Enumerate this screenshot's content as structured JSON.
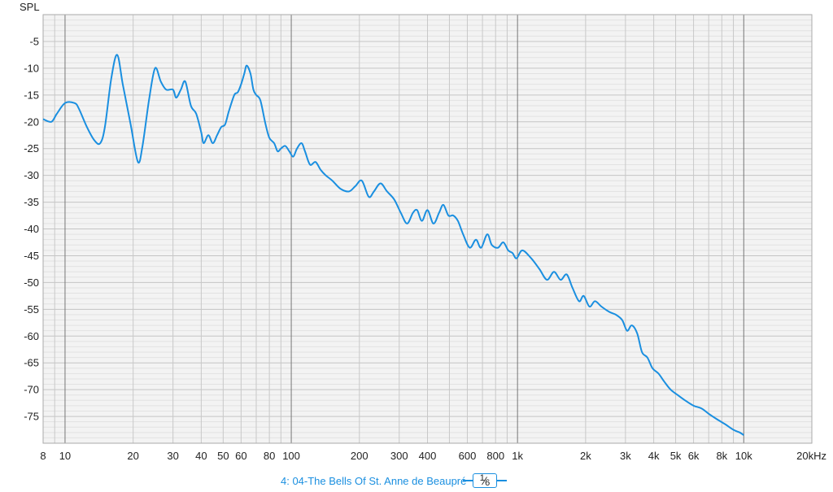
{
  "chart_data": {
    "type": "line",
    "x_scale": "log",
    "xlim": [
      8,
      20000
    ],
    "ylim": [
      -80,
      0
    ],
    "ylabel": "SPL",
    "xlabel": "",
    "grid": true,
    "y_ticks": [
      -5,
      -10,
      -15,
      -20,
      -25,
      -30,
      -35,
      -40,
      -45,
      -50,
      -55,
      -60,
      -65,
      -70,
      -75
    ],
    "x_ticks": [
      {
        "value": 8,
        "label": "8"
      },
      {
        "value": 10,
        "label": "10"
      },
      {
        "value": 20,
        "label": "20"
      },
      {
        "value": 30,
        "label": "30"
      },
      {
        "value": 40,
        "label": "40"
      },
      {
        "value": 50,
        "label": "50"
      },
      {
        "value": 60,
        "label": "60"
      },
      {
        "value": 80,
        "label": "80"
      },
      {
        "value": 100,
        "label": "100"
      },
      {
        "value": 200,
        "label": "200"
      },
      {
        "value": 300,
        "label": "300"
      },
      {
        "value": 400,
        "label": "400"
      },
      {
        "value": 600,
        "label": "600"
      },
      {
        "value": 800,
        "label": "800"
      },
      {
        "value": 1000,
        "label": "1k"
      },
      {
        "value": 2000,
        "label": "2k"
      },
      {
        "value": 3000,
        "label": "3k"
      },
      {
        "value": 4000,
        "label": "4k"
      },
      {
        "value": 5000,
        "label": "5k"
      },
      {
        "value": 6000,
        "label": "6k"
      },
      {
        "value": 8000,
        "label": "8k"
      },
      {
        "value": 10000,
        "label": "10k"
      },
      {
        "value": 20000,
        "label": "20kHz"
      }
    ],
    "series": [
      {
        "name": "4: 04-The Bells Of St. Anne de Beaupré",
        "color": "#1a8fe0",
        "points": [
          [
            8,
            -19.5
          ],
          [
            8.7,
            -20
          ],
          [
            9.2,
            -18.5
          ],
          [
            10,
            -16.5
          ],
          [
            11,
            -16.5
          ],
          [
            11.5,
            -17.5
          ],
          [
            12.5,
            -21
          ],
          [
            13.5,
            -23.5
          ],
          [
            14.3,
            -24
          ],
          [
            15,
            -21
          ],
          [
            16,
            -12
          ],
          [
            17,
            -7.5
          ],
          [
            18,
            -13
          ],
          [
            19.5,
            -20.5
          ],
          [
            21,
            -27.5
          ],
          [
            22,
            -24.5
          ],
          [
            23.5,
            -16
          ],
          [
            25,
            -10
          ],
          [
            26.5,
            -12.5
          ],
          [
            28,
            -14
          ],
          [
            30,
            -14
          ],
          [
            31,
            -15.5
          ],
          [
            32.5,
            -14
          ],
          [
            34,
            -12.5
          ],
          [
            36,
            -17
          ],
          [
            38,
            -18.5
          ],
          [
            40,
            -22
          ],
          [
            41,
            -24
          ],
          [
            43,
            -22.5
          ],
          [
            45,
            -24
          ],
          [
            47,
            -22.5
          ],
          [
            49,
            -21
          ],
          [
            51,
            -20.5
          ],
          [
            53,
            -18
          ],
          [
            56,
            -15
          ],
          [
            58,
            -14.5
          ],
          [
            60,
            -13
          ],
          [
            62,
            -11
          ],
          [
            63.5,
            -9.5
          ],
          [
            66,
            -11
          ],
          [
            68,
            -14
          ],
          [
            70,
            -15
          ],
          [
            73,
            -16
          ],
          [
            77,
            -20.5
          ],
          [
            80,
            -23
          ],
          [
            84,
            -24
          ],
          [
            87,
            -25.5
          ],
          [
            90,
            -25
          ],
          [
            94,
            -24.5
          ],
          [
            98,
            -25.5
          ],
          [
            102,
            -26.5
          ],
          [
            106,
            -25
          ],
          [
            111,
            -24
          ],
          [
            115,
            -25.5
          ],
          [
            121,
            -28
          ],
          [
            128,
            -27.5
          ],
          [
            135,
            -29
          ],
          [
            142,
            -30
          ],
          [
            152,
            -31
          ],
          [
            165,
            -32.5
          ],
          [
            180,
            -33
          ],
          [
            192,
            -32
          ],
          [
            205,
            -31
          ],
          [
            220,
            -34
          ],
          [
            232,
            -33
          ],
          [
            248,
            -31.5
          ],
          [
            265,
            -33
          ],
          [
            285,
            -34.5
          ],
          [
            305,
            -37
          ],
          [
            325,
            -39
          ],
          [
            345,
            -37
          ],
          [
            360,
            -36.5
          ],
          [
            378,
            -38.5
          ],
          [
            400,
            -36.5
          ],
          [
            425,
            -39
          ],
          [
            450,
            -37
          ],
          [
            470,
            -35.5
          ],
          [
            495,
            -37.5
          ],
          [
            520,
            -37.5
          ],
          [
            545,
            -38.5
          ],
          [
            575,
            -41
          ],
          [
            615,
            -43.5
          ],
          [
            655,
            -42
          ],
          [
            690,
            -43.5
          ],
          [
            735,
            -41
          ],
          [
            770,
            -43
          ],
          [
            820,
            -43.5
          ],
          [
            865,
            -42.5
          ],
          [
            910,
            -44
          ],
          [
            950,
            -44.5
          ],
          [
            990,
            -45.5
          ],
          [
            1050,
            -44
          ],
          [
            1150,
            -45.5
          ],
          [
            1250,
            -47.5
          ],
          [
            1350,
            -49.5
          ],
          [
            1450,
            -48
          ],
          [
            1550,
            -49.5
          ],
          [
            1650,
            -48.5
          ],
          [
            1750,
            -51
          ],
          [
            1870,
            -53.5
          ],
          [
            1960,
            -52.5
          ],
          [
            2080,
            -54.5
          ],
          [
            2200,
            -53.5
          ],
          [
            2350,
            -54.5
          ],
          [
            2550,
            -55.5
          ],
          [
            2720,
            -56
          ],
          [
            2900,
            -57
          ],
          [
            3050,
            -59
          ],
          [
            3200,
            -58
          ],
          [
            3380,
            -59.5
          ],
          [
            3550,
            -63
          ],
          [
            3750,
            -64
          ],
          [
            3950,
            -66
          ],
          [
            4200,
            -67
          ],
          [
            4450,
            -68.5
          ],
          [
            4750,
            -70
          ],
          [
            5100,
            -71
          ],
          [
            5500,
            -72
          ],
          [
            6000,
            -73
          ],
          [
            6500,
            -73.5
          ],
          [
            7000,
            -74.5
          ],
          [
            7600,
            -75.5
          ],
          [
            8300,
            -76.5
          ],
          [
            9000,
            -77.5
          ],
          [
            9600,
            -78
          ],
          [
            10000,
            -78.5
          ]
        ]
      }
    ]
  },
  "legend": {
    "series_label": "4: 04-The Bells Of St. Anne de Beaupré",
    "smoothing_numerator": "1",
    "smoothing_denominator": "6"
  }
}
